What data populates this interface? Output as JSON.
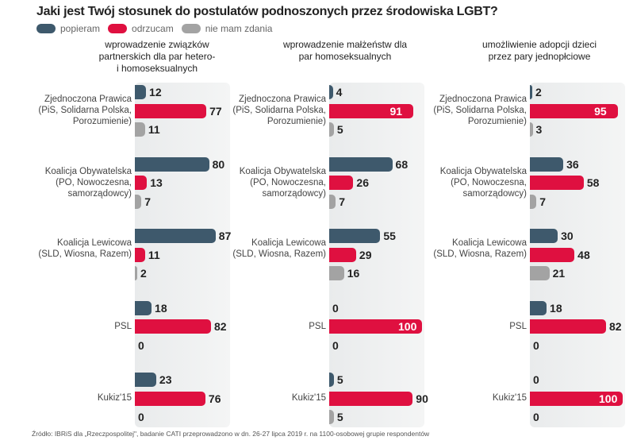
{
  "title": "Jaki jest Twój stosunek do postulatów podnoszonych przez środowiska LGBT?",
  "legend": [
    {
      "label": "popieram",
      "color": "#3e596c"
    },
    {
      "label": "odrzucam",
      "color": "#df1040"
    },
    {
      "label": "nie mam zdania",
      "color": "#a3a3a3"
    }
  ],
  "source": "Źródło: IBRiS dla „Rzeczpospolitej\", badanie CATI przeprowadzono w dn. 26-27 lipca 2019 r. na 1100-osobowej grupie respondentów",
  "chart_data": [
    {
      "type": "bar",
      "title": "wprowadzenie związków partnerskich dla par hetero- i homoseksualnych",
      "categories": [
        "Zjednoczona Prawica (PiS, Solidarna Polska, Porozumienie)",
        "Koalicja Obywatelska (PO, Nowoczesna, samorządowcy)",
        "Koalicja Lewicowa (SLD, Wiosna, Razem)",
        "PSL",
        "Kukiz'15"
      ],
      "series": [
        {
          "name": "popieram",
          "values": [
            12,
            80,
            87,
            18,
            23
          ]
        },
        {
          "name": "odrzucam",
          "values": [
            77,
            13,
            11,
            82,
            76
          ]
        },
        {
          "name": "nie mam zdania",
          "values": [
            11,
            7,
            2,
            0,
            0
          ]
        }
      ],
      "xlim": [
        0,
        100
      ]
    },
    {
      "type": "bar",
      "title": "wprowadzenie małżeństw dla par homoseksualnych",
      "categories": [
        "Zjednoczona Prawica (PiS, Solidarna Polska, Porozumienie)",
        "Koalicja Obywatelska (PO, Nowoczesna, samorządowcy)",
        "Koalicja Lewicowa (SLD, Wiosna, Razem)",
        "PSL",
        "Kukiz'15"
      ],
      "series": [
        {
          "name": "popieram",
          "values": [
            4,
            68,
            55,
            0,
            5
          ]
        },
        {
          "name": "odrzucam",
          "values": [
            91,
            26,
            29,
            100,
            90
          ]
        },
        {
          "name": "nie mam zdania",
          "values": [
            5,
            7,
            16,
            0,
            5
          ]
        }
      ],
      "xlim": [
        0,
        100
      ]
    },
    {
      "type": "bar",
      "title": "umożliwienie adopcji dzieci przez pary jednopłciowe",
      "categories": [
        "Zjednoczona Prawica (PiS, Solidarna Polska, Porozumienie)",
        "Koalicja Obywatelska (PO, Nowoczesna, samorządowcy)",
        "Koalicja Lewicowa (SLD, Wiosna, Razem)",
        "PSL",
        "Kukiz'15"
      ],
      "series": [
        {
          "name": "popieram",
          "values": [
            2,
            36,
            30,
            18,
            0
          ]
        },
        {
          "name": "odrzucam",
          "values": [
            95,
            58,
            48,
            82,
            100
          ]
        },
        {
          "name": "nie mam zdania",
          "values": [
            3,
            7,
            21,
            0,
            0
          ]
        }
      ],
      "xlim": [
        0,
        100
      ]
    }
  ]
}
